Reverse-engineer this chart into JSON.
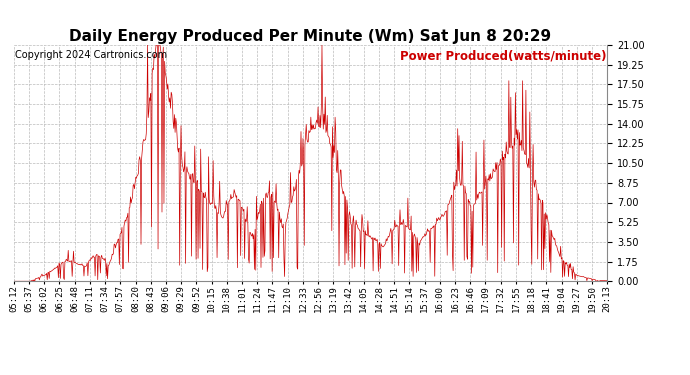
{
  "title": "Daily Energy Produced Per Minute (Wm) Sat Jun 8 20:29",
  "copyright": "Copyright 2024 Cartronics.com",
  "legend_label": "Power Produced(watts/minute)",
  "line_color": "#cc0000",
  "bg_color": "#ffffff",
  "grid_color": "#bbbbbb",
  "ylim": [
    0.0,
    21.0
  ],
  "yticks": [
    0.0,
    1.75,
    3.5,
    5.25,
    7.0,
    8.75,
    10.5,
    12.25,
    14.0,
    15.75,
    17.5,
    19.25,
    21.0
  ],
  "xtick_labels": [
    "05:12",
    "05:37",
    "06:02",
    "06:25",
    "06:48",
    "07:11",
    "07:34",
    "07:57",
    "08:20",
    "08:43",
    "09:06",
    "09:29",
    "09:52",
    "10:15",
    "10:38",
    "11:01",
    "11:24",
    "11:47",
    "12:10",
    "12:33",
    "12:56",
    "13:19",
    "13:42",
    "14:05",
    "14:28",
    "14:51",
    "15:14",
    "15:37",
    "16:00",
    "16:23",
    "16:46",
    "17:09",
    "17:32",
    "17:55",
    "18:18",
    "18:41",
    "19:04",
    "19:27",
    "19:50",
    "20:13"
  ],
  "title_fontsize": 11,
  "copyright_fontsize": 7,
  "legend_fontsize": 8.5,
  "tick_fontsize": 6.5
}
